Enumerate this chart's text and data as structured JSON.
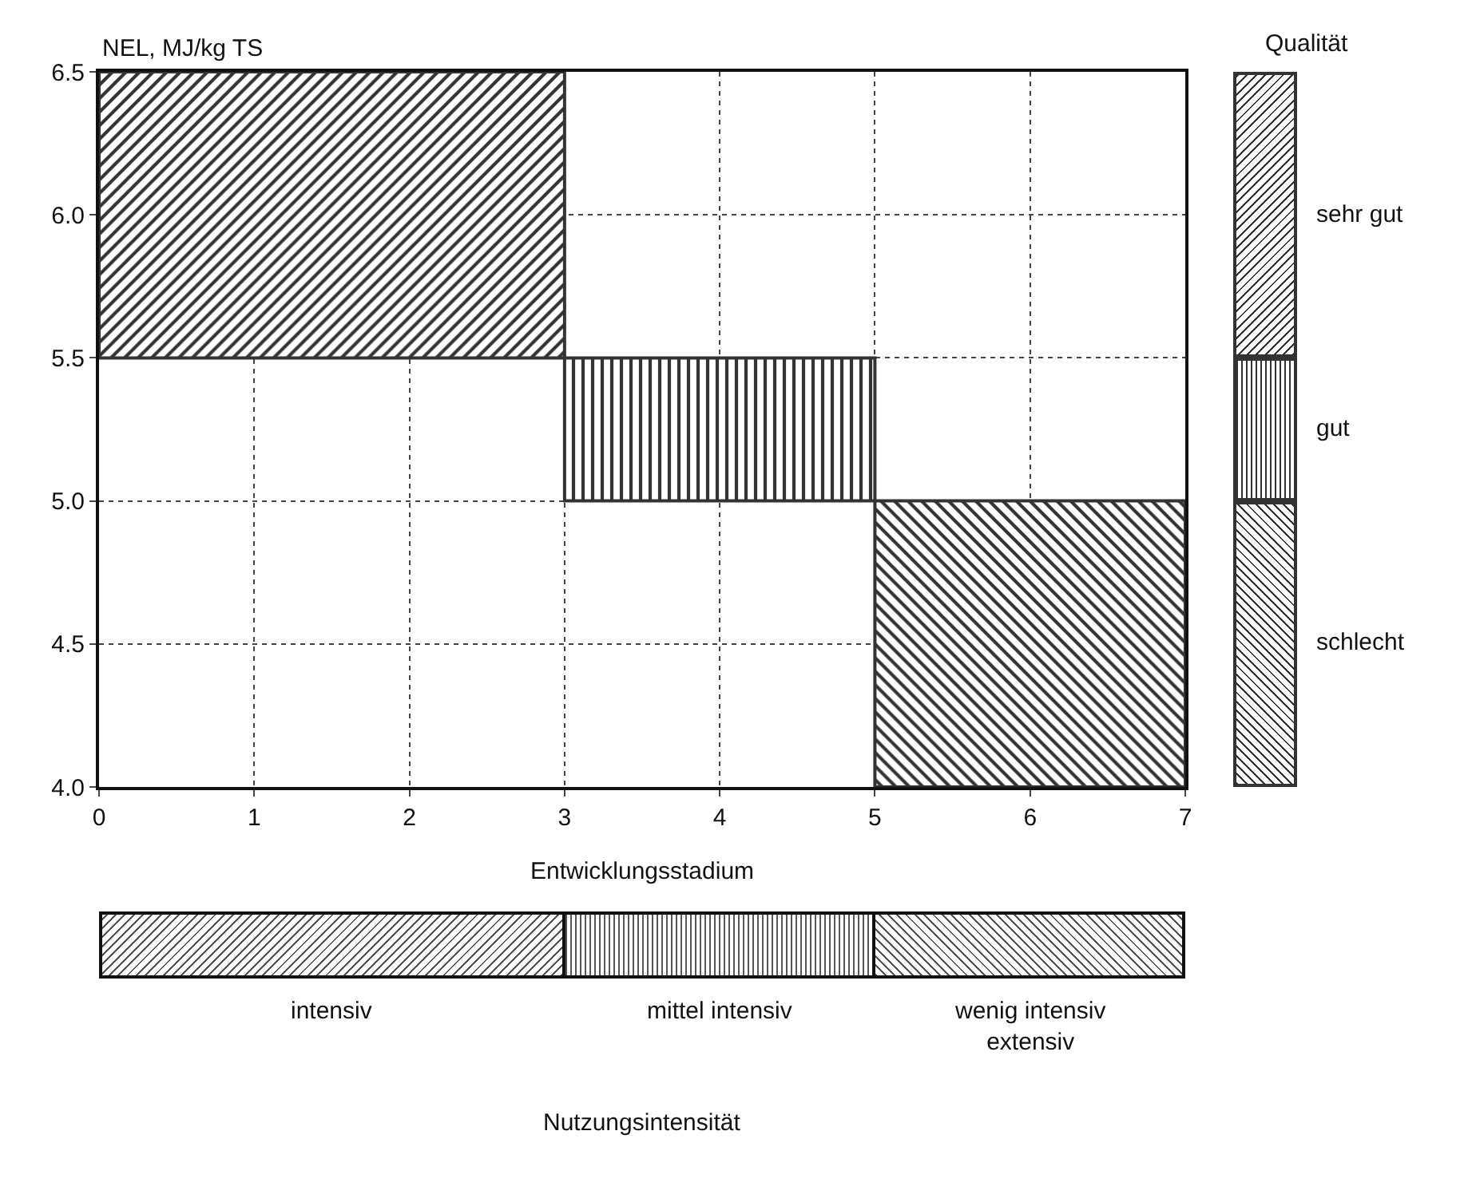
{
  "chart_data": {
    "type": "bar",
    "ylabel": "NEL, MJ/kg TS",
    "xlabel": "Entwicklungsstadium",
    "legend_title": "Qualität",
    "x": [
      1.5,
      4,
      6
    ],
    "series": [
      {
        "name": "sehr gut",
        "color": "#333333",
        "values": [
          1,
          null,
          null
        ],
        "base": [
          5.5,
          null,
          null
        ]
      },
      {
        "name": "gut",
        "color": "#333333",
        "values": [
          null,
          0.5,
          null
        ],
        "base": [
          null,
          5.0,
          null
        ]
      },
      {
        "name": "schlecht",
        "color": "#333333",
        "values": [
          null,
          null,
          1
        ],
        "base": [
          null,
          null,
          4.0
        ]
      }
    ],
    "xlim": [
      0,
      7
    ],
    "xticks": [
      0,
      1,
      2,
      3,
      4,
      5,
      6,
      7
    ],
    "ylim": [
      4,
      6.5
    ],
    "yticks": [
      {
        "value": 4,
        "label": "4.0"
      },
      {
        "value": 4.5,
        "label": "4.5"
      },
      {
        "value": 5,
        "label": "5.0"
      },
      {
        "value": 5.5,
        "label": "5.5"
      },
      {
        "value": 6,
        "label": "6.0"
      },
      {
        "value": 6.5,
        "label": "6.5"
      }
    ],
    "grid": true,
    "legend": "right",
    "annotations": [
      "intensiv",
      "mittel intensiv",
      "wenig intensiv\nextensiv",
      "Nutzungsintensität"
    ]
  }
}
